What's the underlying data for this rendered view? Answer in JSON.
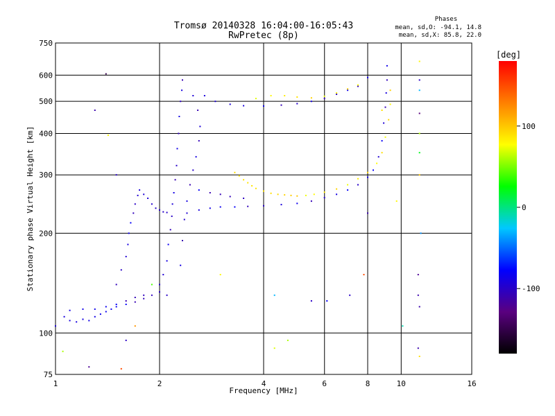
{
  "chart_data": {
    "type": "scatter",
    "title": "Tromsø 20140328 16:04:00-16:05:43",
    "subtitle": "RwPretec (8p)",
    "xlabel": "Frequency [MHz]",
    "ylabel": "Stationary phase Virtual Height [km]",
    "xscale": "log",
    "yscale": "log",
    "xlim": [
      1,
      16
    ],
    "ylim": [
      75,
      750
    ],
    "xticks": [
      1,
      2,
      4,
      6,
      8,
      10,
      16
    ],
    "yticks": [
      75,
      100,
      200,
      300,
      400,
      500,
      600,
      750
    ],
    "xtick_labels": [
      "1",
      "2",
      "4",
      "6",
      "8",
      "10",
      "16"
    ],
    "ytick_labels": [
      "75",
      "100",
      "200",
      "300",
      "400",
      "500",
      "600",
      "750"
    ],
    "grid": true,
    "info": {
      "heading": "Phases",
      "line_o": "mean, sd,O: -94.1, 14.8",
      "line_x": "mean, sd,X:  85.8, 22.0"
    },
    "colorbar": {
      "label": "[deg]",
      "min": -180,
      "max": 180,
      "ticks": [
        100,
        0,
        -100
      ],
      "tick_labels": [
        "100",
        "0",
        "-100"
      ],
      "colormap": [
        "#000000",
        "#5a0080",
        "#0000ff",
        "#00c8ff",
        "#00ff00",
        "#ffff00",
        "#ff8000",
        "#ff0000"
      ]
    },
    "series": [
      {
        "mode": "O",
        "phase": -94.1,
        "points": [
          [
            1.0,
            105
          ],
          [
            1.06,
            112
          ],
          [
            1.1,
            109
          ],
          [
            1.15,
            108
          ],
          [
            1.2,
            110
          ],
          [
            1.25,
            109
          ],
          [
            1.3,
            112
          ],
          [
            1.35,
            114
          ],
          [
            1.4,
            116
          ],
          [
            1.45,
            118
          ],
          [
            1.5,
            120
          ],
          [
            1.6,
            122
          ],
          [
            1.7,
            124
          ],
          [
            1.8,
            127
          ],
          [
            1.9,
            130
          ],
          [
            2.0,
            133
          ],
          [
            1.1,
            117
          ],
          [
            1.2,
            118
          ],
          [
            1.3,
            118
          ],
          [
            1.4,
            120
          ],
          [
            1.5,
            122
          ],
          [
            1.6,
            125
          ],
          [
            1.7,
            128
          ],
          [
            1.8,
            130
          ],
          [
            1.5,
            140
          ],
          [
            1.55,
            155
          ],
          [
            1.6,
            170
          ],
          [
            1.62,
            185
          ],
          [
            1.63,
            200
          ],
          [
            1.65,
            215
          ],
          [
            1.68,
            230
          ],
          [
            1.7,
            245
          ],
          [
            1.73,
            260
          ],
          [
            1.75,
            270
          ],
          [
            1.8,
            262
          ],
          [
            1.85,
            255
          ],
          [
            1.9,
            245
          ],
          [
            1.95,
            238
          ],
          [
            2.0,
            235
          ],
          [
            2.05,
            232
          ],
          [
            2.1,
            231
          ],
          [
            2.0,
            140
          ],
          [
            2.05,
            150
          ],
          [
            2.1,
            165
          ],
          [
            2.12,
            185
          ],
          [
            2.15,
            205
          ],
          [
            2.17,
            225
          ],
          [
            2.18,
            245
          ],
          [
            2.2,
            265
          ],
          [
            2.22,
            290
          ],
          [
            2.24,
            320
          ],
          [
            2.25,
            360
          ],
          [
            2.27,
            400
          ],
          [
            2.28,
            450
          ],
          [
            2.3,
            500
          ],
          [
            2.32,
            540
          ],
          [
            2.33,
            580
          ],
          [
            2.3,
            160
          ],
          [
            2.33,
            190
          ],
          [
            2.36,
            220
          ],
          [
            2.4,
            250
          ],
          [
            2.45,
            280
          ],
          [
            2.5,
            310
          ],
          [
            2.55,
            340
          ],
          [
            2.6,
            380
          ],
          [
            2.62,
            420
          ],
          [
            2.58,
            470
          ],
          [
            2.5,
            520
          ],
          [
            2.4,
            230
          ],
          [
            2.6,
            235
          ],
          [
            2.8,
            238
          ],
          [
            3.0,
            240
          ],
          [
            3.3,
            240
          ],
          [
            3.6,
            241
          ],
          [
            4.0,
            242
          ],
          [
            4.5,
            244
          ],
          [
            5.0,
            246
          ],
          [
            5.5,
            250
          ],
          [
            6.0,
            256
          ],
          [
            6.5,
            262
          ],
          [
            7.0,
            270
          ],
          [
            7.5,
            280
          ],
          [
            8.0,
            295
          ],
          [
            8.3,
            310
          ],
          [
            8.6,
            340
          ],
          [
            8.8,
            380
          ],
          [
            8.9,
            430
          ],
          [
            9.0,
            480
          ],
          [
            9.05,
            530
          ],
          [
            9.1,
            580
          ],
          [
            9.1,
            640
          ],
          [
            2.6,
            270
          ],
          [
            2.8,
            265
          ],
          [
            3.0,
            262
          ],
          [
            3.2,
            258
          ],
          [
            3.5,
            255
          ],
          [
            2.7,
            520
          ],
          [
            2.9,
            500
          ],
          [
            3.2,
            490
          ],
          [
            3.5,
            485
          ],
          [
            4.0,
            484
          ],
          [
            4.5,
            487
          ],
          [
            5.0,
            492
          ],
          [
            5.5,
            500
          ],
          [
            6.0,
            510
          ],
          [
            6.5,
            525
          ],
          [
            7.0,
            540
          ],
          [
            7.5,
            555
          ],
          [
            8.0,
            590
          ]
        ]
      },
      {
        "mode": "X",
        "phase": 85.8,
        "points": [
          [
            3.3,
            305
          ],
          [
            3.4,
            298
          ],
          [
            3.5,
            290
          ],
          [
            3.6,
            284
          ],
          [
            3.7,
            278
          ],
          [
            3.8,
            273
          ],
          [
            4.0,
            268
          ],
          [
            4.2,
            264
          ],
          [
            4.4,
            262
          ],
          [
            4.6,
            261
          ],
          [
            4.8,
            260
          ],
          [
            5.0,
            259
          ],
          [
            5.3,
            260
          ],
          [
            5.6,
            262
          ],
          [
            6.0,
            266
          ],
          [
            6.5,
            272
          ],
          [
            7.0,
            280
          ],
          [
            7.5,
            292
          ],
          [
            8.0,
            305
          ],
          [
            8.5,
            325
          ],
          [
            8.8,
            350
          ],
          [
            9.0,
            390
          ],
          [
            9.2,
            440
          ],
          [
            9.3,
            490
          ],
          [
            9.3,
            540
          ],
          [
            3.8,
            510
          ],
          [
            4.2,
            520
          ],
          [
            4.6,
            520
          ],
          [
            5.0,
            515
          ],
          [
            5.5,
            512
          ],
          [
            6.0,
            518
          ],
          [
            6.5,
            530
          ],
          [
            7.0,
            545
          ],
          [
            7.5,
            560
          ]
        ]
      }
    ],
    "scatter_noise": [
      [
        1.05,
        88,
        60
      ],
      [
        1.25,
        79,
        -120
      ],
      [
        1.3,
        470,
        -110
      ],
      [
        1.4,
        605,
        -150
      ],
      [
        1.42,
        395,
        80
      ],
      [
        1.5,
        300,
        -100
      ],
      [
        1.55,
        78,
        150
      ],
      [
        1.6,
        95,
        -100
      ],
      [
        1.7,
        105,
        120
      ],
      [
        1.9,
        140,
        40
      ],
      [
        2.1,
        130,
        -100
      ],
      [
        3.0,
        150,
        80
      ],
      [
        4.3,
        130,
        -30
      ],
      [
        4.3,
        90,
        70
      ],
      [
        4.7,
        95,
        60
      ],
      [
        5.5,
        125,
        -100
      ],
      [
        6.1,
        125,
        -80
      ],
      [
        7.1,
        130,
        -100
      ],
      [
        7.8,
        150,
        150
      ],
      [
        8.0,
        230,
        -110
      ],
      [
        8.8,
        470,
        90
      ],
      [
        9.7,
        250,
        80
      ],
      [
        10.1,
        105,
        -10
      ],
      [
        11.3,
        580,
        -100
      ],
      [
        11.3,
        540,
        -30
      ],
      [
        11.3,
        460,
        -130
      ],
      [
        11.3,
        400,
        60
      ],
      [
        11.3,
        350,
        20
      ],
      [
        11.3,
        300,
        100
      ],
      [
        11.4,
        200,
        -40
      ],
      [
        11.2,
        150,
        -120
      ],
      [
        11.2,
        130,
        -110
      ],
      [
        11.3,
        120,
        -110
      ],
      [
        11.2,
        90,
        -110
      ],
      [
        11.3,
        85,
        90
      ],
      [
        11.3,
        660,
        80
      ]
    ]
  }
}
